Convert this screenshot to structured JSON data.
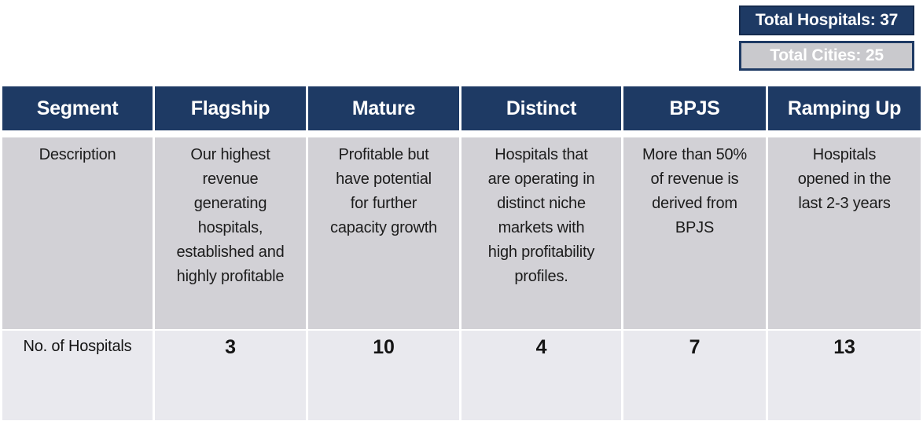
{
  "badges": {
    "total_hospitals": "Total Hospitals: 37",
    "total_cities": "Total Cities: 25"
  },
  "colors": {
    "navy": "#1e3a64",
    "navy_border_dark": "#152b4e",
    "badge_gray_fill": "#c9c9cd",
    "description_row_bg": "#d2d1d6",
    "counts_row_bg": "#e9e9ee",
    "header_text": "#ffffff",
    "body_text": "#1c1c1c"
  },
  "table": {
    "header": [
      "Segment",
      "Flagship",
      "Mature",
      "Distinct",
      "BPJS",
      "Ramping Up"
    ],
    "rows": [
      {
        "label": "Description",
        "cells": [
          "Our highest\nrevenue\ngenerating\nhospitals,\nestablished and\nhighly profitable",
          "Profitable but\nhave potential\nfor further\ncapacity growth",
          "Hospitals that\nare operating in\ndistinct niche\nmarkets with\nhigh profitability\nprofiles.",
          "More than 50%\nof revenue is\nderived from\nBPJS",
          "Hospitals\nopened in the\nlast 2-3 years"
        ]
      },
      {
        "label": "No. of Hospitals",
        "cells": [
          "3",
          "10",
          "4",
          "7",
          "13"
        ]
      }
    ]
  }
}
